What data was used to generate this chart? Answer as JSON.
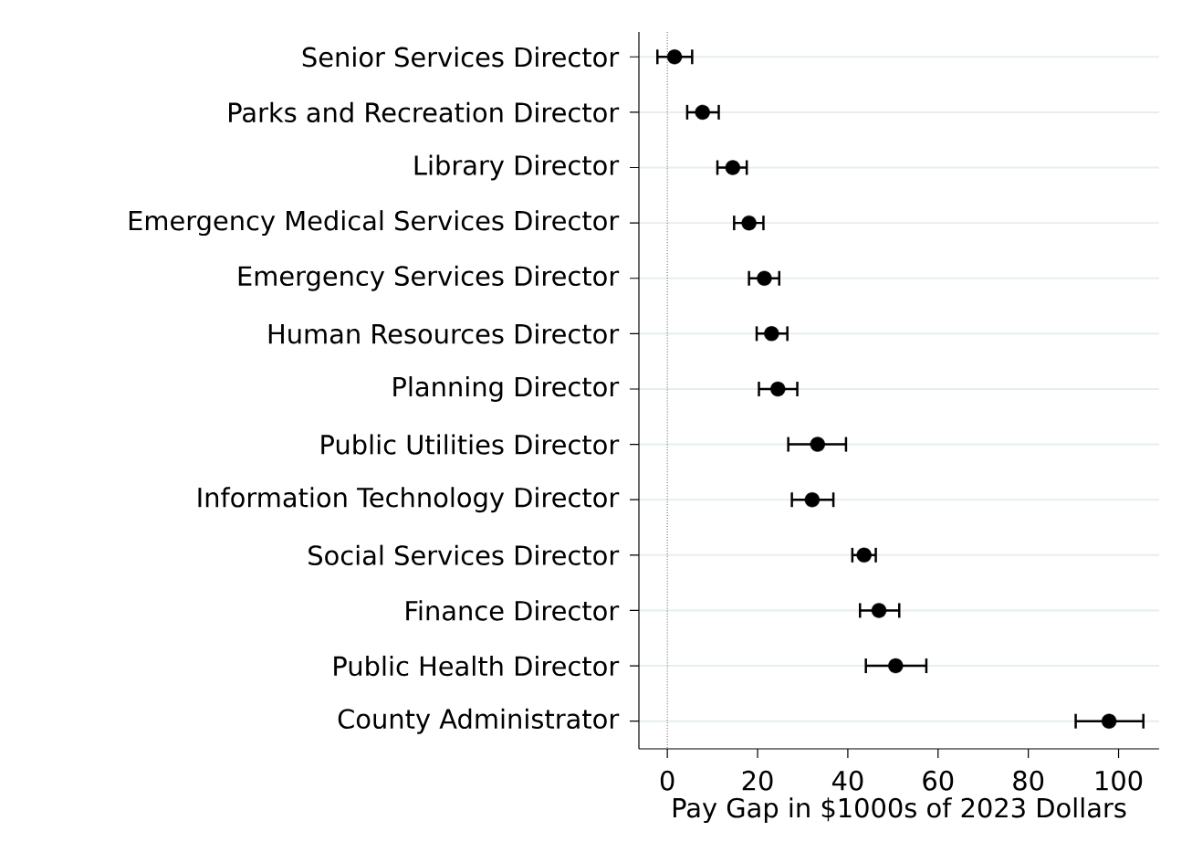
{
  "chart_data": {
    "type": "scatter",
    "orientation": "horizontal",
    "xlabel": "Pay Gap in $1000s of 2023 Dollars",
    "categories": [
      "Senior Services Director",
      "Parks and Recreation Director",
      "Library Director",
      "Emergency Medical Services Director",
      "Emergency Services Director",
      "Human Resources Director",
      "Planning Director",
      "Public Utilities Director",
      "Information Technology Director",
      "Social Services Director",
      "Finance Director",
      "Public Health Director",
      "County Administrator"
    ],
    "values": [
      1.6,
      7.8,
      14.5,
      18.1,
      21.5,
      23.1,
      24.5,
      33.3,
      32.1,
      43.6,
      46.9,
      50.6,
      97.9
    ],
    "errors": [
      [
        -2.2,
        5.5
      ],
      [
        4.4,
        11.4
      ],
      [
        11.1,
        17.6
      ],
      [
        14.8,
        21.3
      ],
      [
        18.1,
        24.8
      ],
      [
        19.8,
        26.6
      ],
      [
        20.3,
        28.8
      ],
      [
        26.8,
        39.6
      ],
      [
        27.6,
        36.8
      ],
      [
        41.0,
        46.2
      ],
      [
        42.7,
        51.4
      ],
      [
        44.0,
        57.4
      ],
      [
        90.5,
        105.5
      ]
    ],
    "color": "#000000",
    "grid": "y",
    "xlim": [
      -6.3,
      109
    ],
    "xticks": [
      0,
      20,
      40,
      60,
      80,
      100
    ],
    "ref_lines": [
      {
        "axis": "x",
        "value": 0,
        "line_style": "dotted",
        "color": "#555555"
      }
    ]
  }
}
